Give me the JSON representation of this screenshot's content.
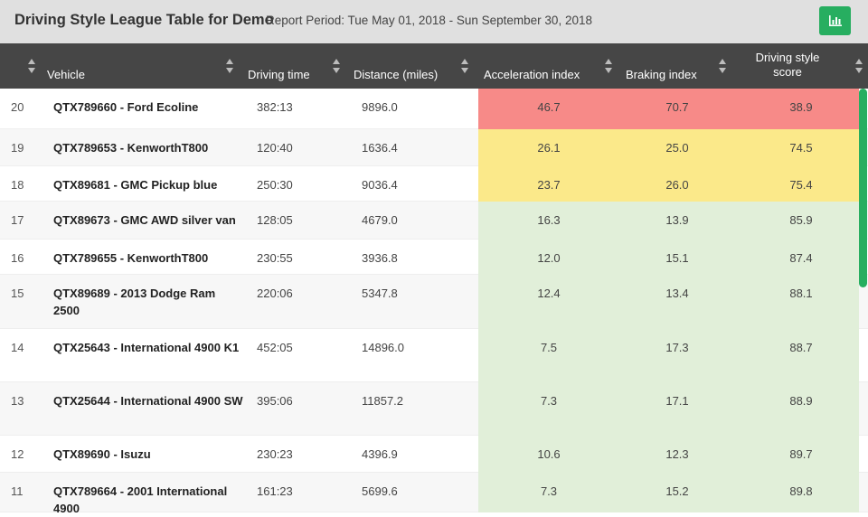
{
  "header": {
    "title": "Driving Style League Table for Demo",
    "period": "Report Period: Tue May 01, 2018 - Sun September 30, 2018",
    "chart_button_icon": "bar-chart-icon"
  },
  "columns": {
    "vehicle": "Vehicle",
    "driving_time": "Driving time",
    "distance": "Distance (miles)",
    "acceleration": "Acceleration index",
    "braking": "Braking index",
    "score_line1": "Driving style",
    "score_line2": "score"
  },
  "colors": {
    "red": "#f78a88",
    "yellow": "#fbe98a",
    "green": "#e1efd9",
    "accent": "#27ae60",
    "header": "#464646"
  },
  "rows": [
    {
      "rank": "20",
      "vehicle": "QTX789660 - Ford Ecoline",
      "time": "382:13",
      "distance": "9896.0",
      "accel": "46.7",
      "braking": "70.7",
      "score": "38.9",
      "status": "red"
    },
    {
      "rank": "19",
      "vehicle": "QTX789653 - KenworthT800",
      "time": "120:40",
      "distance": "1636.4",
      "accel": "26.1",
      "braking": "25.0",
      "score": "74.5",
      "status": "yellow"
    },
    {
      "rank": "18",
      "vehicle": "QTX89681 - GMC Pickup blue",
      "time": "250:30",
      "distance": "9036.4",
      "accel": "23.7",
      "braking": "26.0",
      "score": "75.4",
      "status": "yellow"
    },
    {
      "rank": "17",
      "vehicle": "QTX89673 - GMC AWD silver van",
      "time": "128:05",
      "distance": "4679.0",
      "accel": "16.3",
      "braking": "13.9",
      "score": "85.9",
      "status": "green"
    },
    {
      "rank": "16",
      "vehicle": "QTX789655 - KenworthT800",
      "time": "230:55",
      "distance": "3936.8",
      "accel": "12.0",
      "braking": "15.1",
      "score": "87.4",
      "status": "green"
    },
    {
      "rank": "15",
      "vehicle": "QTX89689 - 2013 Dodge Ram 2500",
      "time": "220:06",
      "distance": "5347.8",
      "accel": "12.4",
      "braking": "13.4",
      "score": "88.1",
      "status": "green"
    },
    {
      "rank": "14",
      "vehicle": "QTX25643 - International 4900 K1",
      "time": "452:05",
      "distance": "14896.0",
      "accel": "7.5",
      "braking": "17.3",
      "score": "88.7",
      "status": "green"
    },
    {
      "rank": "13",
      "vehicle": "QTX25644 - International 4900 SW",
      "time": "395:06",
      "distance": "11857.2",
      "accel": "7.3",
      "braking": "17.1",
      "score": "88.9",
      "status": "green"
    },
    {
      "rank": "12",
      "vehicle": "QTX89690 - Isuzu",
      "time": "230:23",
      "distance": "4396.9",
      "accel": "10.6",
      "braking": "12.3",
      "score": "89.7",
      "status": "green"
    },
    {
      "rank": "11",
      "vehicle": "QTX789664 - 2001 International 4900",
      "time": "161:23",
      "distance": "5699.6",
      "accel": "7.3",
      "braking": "15.2",
      "score": "89.8",
      "status": "green"
    }
  ]
}
